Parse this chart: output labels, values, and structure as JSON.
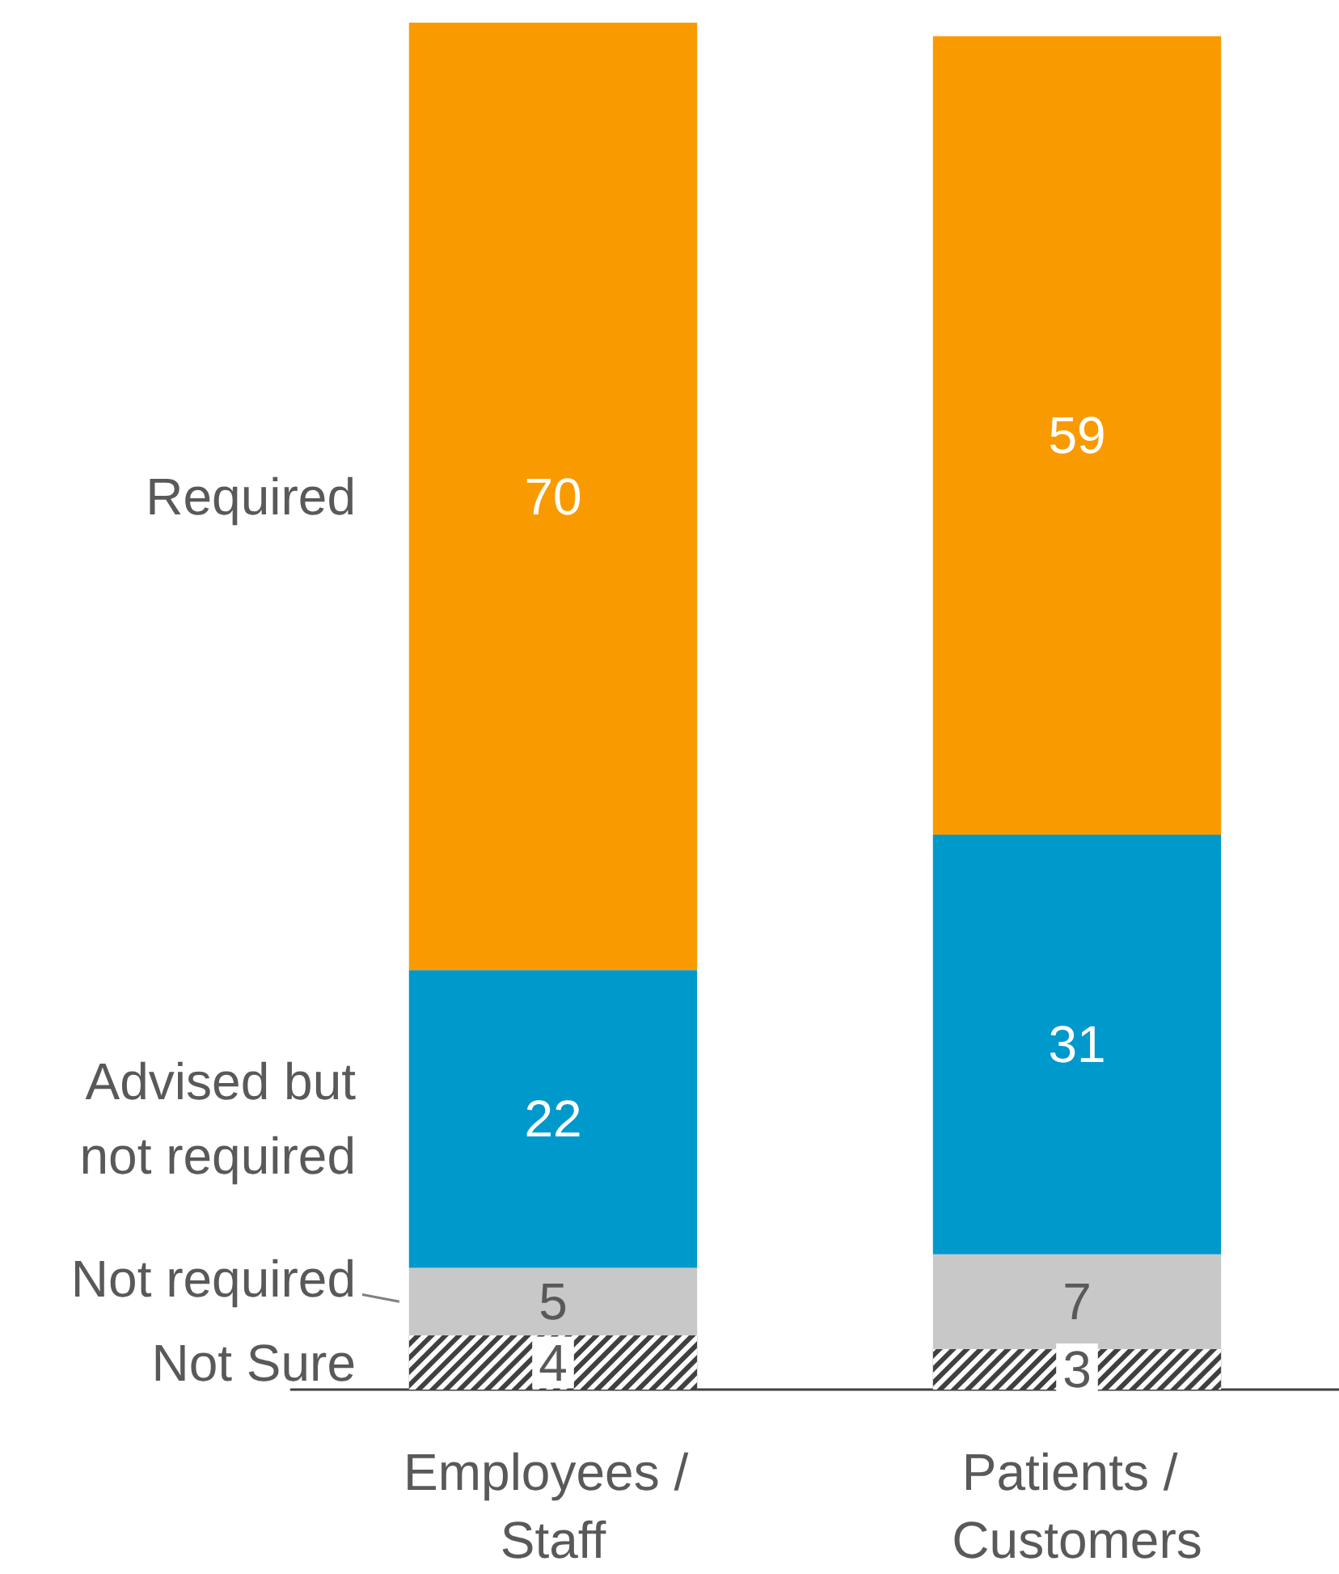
{
  "chart_data": {
    "type": "bar",
    "stacked": true,
    "categories": [
      "Employees / Staff",
      "Patients / Customers"
    ],
    "series": [
      {
        "name": "Not Sure",
        "color": "#404040",
        "values": [
          4,
          3
        ]
      },
      {
        "name": "Not required",
        "color": "#c8c8c8",
        "values": [
          5,
          7
        ]
      },
      {
        "name": "Advised but not required",
        "color": "#0099cc",
        "values": [
          22,
          31
        ]
      },
      {
        "name": "Required",
        "color": "#f99b00",
        "values": [
          70,
          59
        ]
      }
    ],
    "data_labels": true,
    "legend": false
  }
}
